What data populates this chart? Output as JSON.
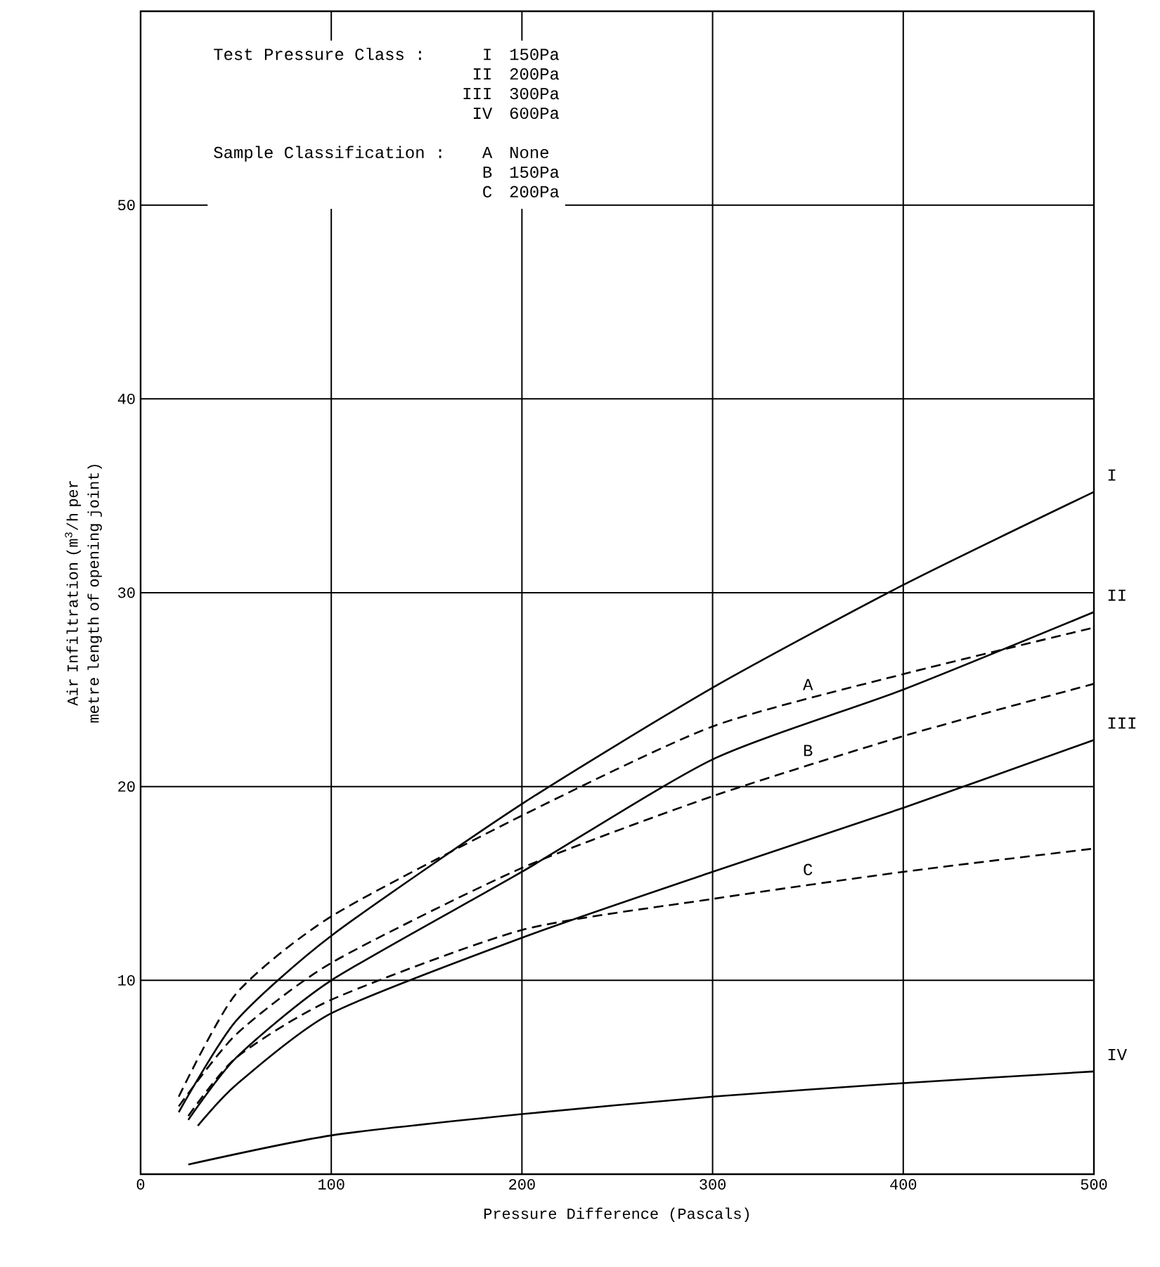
{
  "chart_data": {
    "type": "line",
    "xlabel": "Pressure Difference (Pascals)",
    "ylabel": "Air Infiltration (m$^{3}$/h per metre length of opening joint)",
    "xlim": [
      0,
      500
    ],
    "ylim": [
      0,
      60
    ],
    "xticks": [
      0,
      100,
      200,
      300,
      400,
      500
    ],
    "yticks": [
      10,
      20,
      30,
      40,
      50
    ],
    "grid": true,
    "marker": "none",
    "annotations": [
      "Test Pressure Class :",
      "I",
      "150Pa",
      "II",
      "200Pa",
      "III",
      "300Pa",
      "IV",
      "600Pa",
      "Sample Classification :",
      "A",
      "None",
      "B",
      "150Pa",
      "C",
      "200Pa"
    ],
    "series": [
      {
        "name": "I",
        "color": "#000000",
        "line_style": "solid",
        "x": [
          20,
          50,
          100,
          200,
          300,
          400,
          500
        ],
        "values": [
          3.2,
          7.9,
          12.3,
          19.1,
          25.1,
          30.4,
          35.2
        ]
      },
      {
        "name": "II",
        "color": "#000000",
        "line_style": "solid",
        "x": [
          25,
          50,
          100,
          200,
          300,
          400,
          500
        ],
        "values": [
          2.8,
          6.0,
          10.0,
          15.6,
          21.4,
          25.0,
          29.0
        ]
      },
      {
        "name": "III",
        "color": "#000000",
        "line_style": "solid",
        "x": [
          30,
          50,
          100,
          200,
          300,
          400,
          500
        ],
        "values": [
          2.5,
          4.6,
          8.3,
          12.2,
          15.6,
          18.9,
          22.4
        ]
      },
      {
        "name": "IV",
        "color": "#000000",
        "line_style": "solid",
        "x": [
          25,
          100,
          200,
          300,
          400,
          500
        ],
        "values": [
          0.5,
          2.0,
          3.1,
          4.0,
          4.7,
          5.3
        ]
      },
      {
        "name": "A",
        "color": "#000000",
        "line_style": "dashed",
        "x": [
          20,
          50,
          100,
          200,
          300,
          400,
          500
        ],
        "values": [
          4.0,
          9.3,
          13.3,
          18.5,
          23.1,
          25.8,
          28.2
        ]
      },
      {
        "name": "B",
        "color": "#000000",
        "line_style": "dashed",
        "x": [
          20,
          50,
          100,
          200,
          300,
          400,
          500
        ],
        "values": [
          3.5,
          7.2,
          10.9,
          15.8,
          19.5,
          22.6,
          25.3
        ]
      },
      {
        "name": "C",
        "color": "#000000",
        "line_style": "dashed",
        "x": [
          25,
          50,
          100,
          200,
          300,
          400,
          500
        ],
        "values": [
          3.0,
          6.0,
          9.0,
          12.6,
          14.2,
          15.6,
          16.8
        ]
      }
    ]
  }
}
